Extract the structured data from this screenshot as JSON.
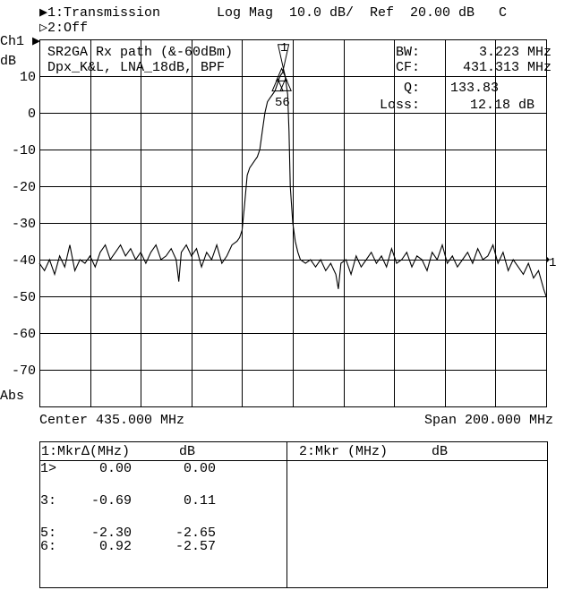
{
  "header": {
    "trace1": "▶1:Transmission",
    "format": "Log Mag  10.0 dB/  Ref  20.00 dB   C",
    "trace2": "▷2:Off",
    "channel": "Ch1 ▶",
    "unit": "dB",
    "abs": "Abs"
  },
  "annotations": {
    "title1": "SR2GA Rx path (&-60dBm)",
    "title2": "Dpx_K&L, LNA_18dB, BPF",
    "bw_label": "BW:",
    "bw_value": "3.223 MHz",
    "cf_label": "CF:",
    "cf_value": "431.313 MHz",
    "q_label": "Q:",
    "q_value": "133.83",
    "loss_label": "Loss:",
    "loss_value": "12.18 dB",
    "marker_top_label": "1",
    "marker_group_label": "56",
    "ref_marker_label": "1"
  },
  "footer": {
    "center": "Center 435.000 MHz",
    "span": "Span 200.000 MHz"
  },
  "marker_table": {
    "left_header": "1:Mkr∆(MHz)",
    "left_header_db": "dB",
    "right_header": "2:Mkr (MHz)",
    "right_header_db": "dB",
    "rows": [
      {
        "id": "1>",
        "mhz": "0.00",
        "db": "0.00"
      },
      {
        "id": "3:",
        "mhz": "-0.69",
        "db": "0.11"
      },
      {
        "id": "5:",
        "mhz": "-2.30",
        "db": "-2.65"
      },
      {
        "id": "6:",
        "mhz": "0.92",
        "db": "-2.57"
      }
    ]
  },
  "chart_data": {
    "type": "line",
    "xlabel": "",
    "ylabel": "dB",
    "xlim": [
      335,
      535
    ],
    "ylim": [
      -80,
      20
    ],
    "grid": true,
    "x_divisions": 10,
    "y_divisions": 10,
    "yticks": [
      10,
      0,
      -10,
      -20,
      -30,
      -40,
      -50,
      -60,
      -70
    ],
    "ytick_labels": [
      "10",
      "0",
      "-10",
      "-20",
      "-30",
      "-40",
      "-50",
      "-60",
      "-70"
    ],
    "trace_color": "#000000",
    "x": [
      335,
      337,
      339,
      341,
      343,
      345,
      347,
      349,
      351,
      353,
      355,
      357,
      359,
      361,
      363,
      365,
      367,
      369,
      371,
      373,
      375,
      377,
      379,
      381,
      383,
      385,
      387,
      389,
      390,
      391,
      393,
      395,
      397,
      399,
      401,
      403,
      405,
      407,
      409,
      411,
      413,
      414,
      415,
      416,
      417,
      418,
      419,
      420,
      421,
      422,
      423,
      424,
      425,
      426,
      427,
      428,
      429,
      430,
      431,
      431.3,
      432,
      433,
      433.5,
      434,
      435,
      436,
      437,
      438,
      440,
      442,
      444,
      446,
      448,
      450,
      452,
      453,
      454,
      456,
      458,
      460,
      462,
      464,
      466,
      468,
      470,
      472,
      474,
      476,
      478,
      480,
      482,
      484,
      486,
      488,
      490,
      492,
      494,
      496,
      498,
      500,
      502,
      504,
      506,
      508,
      510,
      512,
      514,
      516,
      518,
      520,
      522,
      524,
      526,
      528,
      530,
      532,
      534,
      535
    ],
    "y": [
      -41,
      -43,
      -40,
      -44,
      -39,
      -42,
      -36,
      -43,
      -40,
      -41,
      -39,
      -42,
      -38,
      -36,
      -40,
      -38,
      -36,
      -39,
      -37,
      -40,
      -38,
      -41,
      -38,
      -36,
      -40,
      -39,
      -37,
      -40,
      -46,
      -38,
      -36,
      -39,
      -37,
      -42,
      -38,
      -40,
      -36,
      -41,
      -39,
      -36,
      -35,
      -34,
      -32,
      -25,
      -17,
      -15,
      -14,
      -13,
      -12,
      -10,
      -5,
      0,
      3,
      4,
      5,
      6,
      8,
      10,
      11,
      12,
      10,
      5,
      -5,
      -20,
      -30,
      -35,
      -38,
      -40,
      -41,
      -40,
      -42,
      -40,
      -43,
      -41,
      -44,
      -48,
      -41,
      -40,
      -44,
      -39,
      -42,
      -40,
      -38,
      -41,
      -39,
      -42,
      -37,
      -41,
      -40,
      -38,
      -42,
      -39,
      -40,
      -43,
      -38,
      -40,
      -36,
      -41,
      -39,
      -42,
      -40,
      -38,
      -41,
      -37,
      -40,
      -39,
      -36,
      -41,
      -38,
      -43,
      -40,
      -42,
      -44,
      -41,
      -45,
      -43,
      -48,
      -50
    ],
    "markers": [
      {
        "id": 1,
        "x": 431.313,
        "y": 12.0
      },
      {
        "id": 3,
        "x": 430.62,
        "y": 12.1
      },
      {
        "id": 5,
        "x": 429.01,
        "y": 9.35
      },
      {
        "id": 6,
        "x": 432.23,
        "y": 9.43
      }
    ]
  }
}
